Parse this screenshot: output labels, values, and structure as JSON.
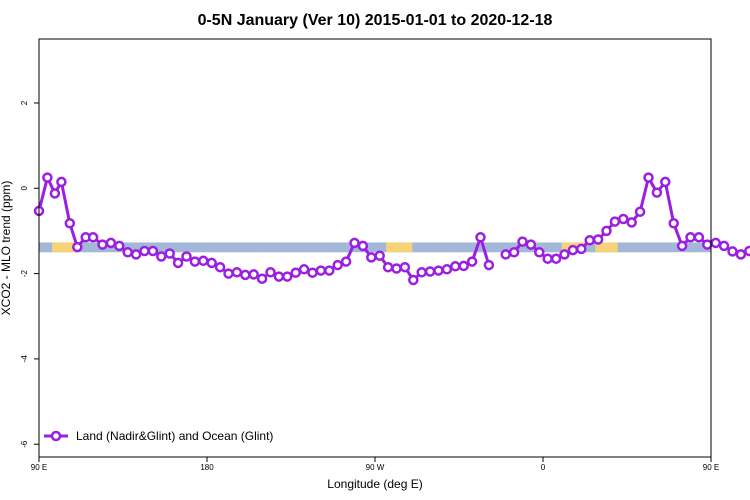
{
  "chart_data": {
    "type": "line",
    "title": "0-5N January (Ver 10)   2015-01-01 to 2020-12-18",
    "xlabel": "Longitude (deg E)",
    "ylabel": "XCO2 - MLO trend (ppm)",
    "xlim": [
      90,
      450
    ],
    "ylim": [
      -6.3,
      3.5
    ],
    "x_ticks": [
      {
        "value": 90,
        "label": "90 E"
      },
      {
        "value": 180,
        "label": "180"
      },
      {
        "value": 270,
        "label": "90 W"
      },
      {
        "value": 360,
        "label": "0"
      },
      {
        "value": 450,
        "label": "90 E"
      },
      {
        "value": 540,
        "label": "180"
      }
    ],
    "y_ticks": [
      {
        "value": 2,
        "label": "2"
      },
      {
        "value": 0,
        "label": "0"
      },
      {
        "value": -2,
        "label": "-2"
      },
      {
        "value": -4,
        "label": "-4"
      },
      {
        "value": -6,
        "label": "-6"
      }
    ],
    "band": {
      "ymin": -1.5,
      "ymax": -1.27,
      "color": "#a3b8d8",
      "land_color": "#f5d376",
      "land_segments": [
        [
          97,
          101
        ],
        [
          101,
          104
        ],
        [
          104,
          111
        ],
        [
          276,
          290
        ],
        [
          370,
          383
        ],
        [
          388,
          400
        ],
        [
          461,
          467
        ],
        [
          469,
          472
        ]
      ]
    },
    "legend": {
      "position": "bottom-left"
    },
    "series": [
      {
        "name": "Land (Nadir&Glint) and Ocean (Glint)",
        "color": "#9b1fe0",
        "segments": [
          [
            [
              90,
              -0.53
            ],
            [
              94.5,
              0.25
            ],
            [
              98.5,
              -0.12
            ],
            [
              102,
              0.15
            ],
            [
              106.5,
              -0.82
            ],
            [
              110.5,
              -1.38
            ],
            [
              115,
              -1.15
            ],
            [
              119,
              -1.15
            ],
            [
              124,
              -1.32
            ],
            [
              128.5,
              -1.28
            ],
            [
              133,
              -1.35
            ],
            [
              137.5,
              -1.5
            ],
            [
              142,
              -1.55
            ],
            [
              146.5,
              -1.47
            ],
            [
              151,
              -1.47
            ],
            [
              155.5,
              -1.6
            ],
            [
              160,
              -1.53
            ],
            [
              164.5,
              -1.75
            ],
            [
              169,
              -1.6
            ],
            [
              173.5,
              -1.72
            ],
            [
              178,
              -1.7
            ],
            [
              182.5,
              -1.75
            ],
            [
              187,
              -1.85
            ],
            [
              191.5,
              -2.0
            ],
            [
              196,
              -1.97
            ],
            [
              200.5,
              -2.03
            ],
            [
              205,
              -2.02
            ],
            [
              209.5,
              -2.12
            ],
            [
              214,
              -1.97
            ],
            [
              218.5,
              -2.07
            ],
            [
              223,
              -2.07
            ],
            [
              227.5,
              -1.98
            ],
            [
              232,
              -1.9
            ],
            [
              236.5,
              -1.98
            ],
            [
              241,
              -1.93
            ],
            [
              245.5,
              -1.93
            ],
            [
              250,
              -1.8
            ],
            [
              254.5,
              -1.72
            ],
            [
              259,
              -1.28
            ],
            [
              263.5,
              -1.35
            ],
            [
              268,
              -1.62
            ],
            [
              272.5,
              -1.58
            ],
            [
              277,
              -1.85
            ],
            [
              281.5,
              -1.88
            ],
            [
              286,
              -1.85
            ],
            [
              290.5,
              -2.15
            ],
            [
              295,
              -1.97
            ],
            [
              299.5,
              -1.95
            ],
            [
              304,
              -1.93
            ],
            [
              308.5,
              -1.9
            ],
            [
              313,
              -1.83
            ],
            [
              317.5,
              -1.82
            ],
            [
              322,
              -1.72
            ],
            [
              326.5,
              -1.15
            ],
            [
              331,
              -1.8
            ]
          ],
          [
            [
              340,
              -1.55
            ],
            [
              344.5,
              -1.5
            ],
            [
              349,
              -1.25
            ],
            [
              353.5,
              -1.32
            ],
            [
              358,
              -1.5
            ],
            [
              362.5,
              -1.65
            ],
            [
              367,
              -1.65
            ],
            [
              371.5,
              -1.55
            ],
            [
              376,
              -1.45
            ],
            [
              380.5,
              -1.42
            ],
            [
              385,
              -1.22
            ],
            [
              389.5,
              -1.2
            ],
            [
              394,
              -1.0
            ],
            [
              398.5,
              -0.78
            ],
            [
              403,
              -0.72
            ],
            [
              407.5,
              -0.8
            ],
            [
              412,
              -0.55
            ],
            [
              416.5,
              0.25
            ],
            [
              421,
              -0.1
            ],
            [
              425.5,
              0.15
            ],
            [
              430,
              -0.82
            ],
            [
              434.5,
              -1.35
            ],
            [
              439,
              -1.15
            ],
            [
              443.5,
              -1.15
            ],
            [
              448,
              -1.32
            ],
            [
              452.5,
              -1.28
            ],
            [
              457,
              -1.35
            ],
            [
              461.5,
              -1.48
            ],
            [
              466,
              -1.55
            ],
            [
              470.5,
              -1.47
            ],
            [
              475,
              -1.47
            ],
            [
              479.5,
              -1.6
            ],
            [
              484,
              -1.53
            ],
            [
              488.5,
              -1.75
            ]
          ]
        ]
      }
    ]
  }
}
